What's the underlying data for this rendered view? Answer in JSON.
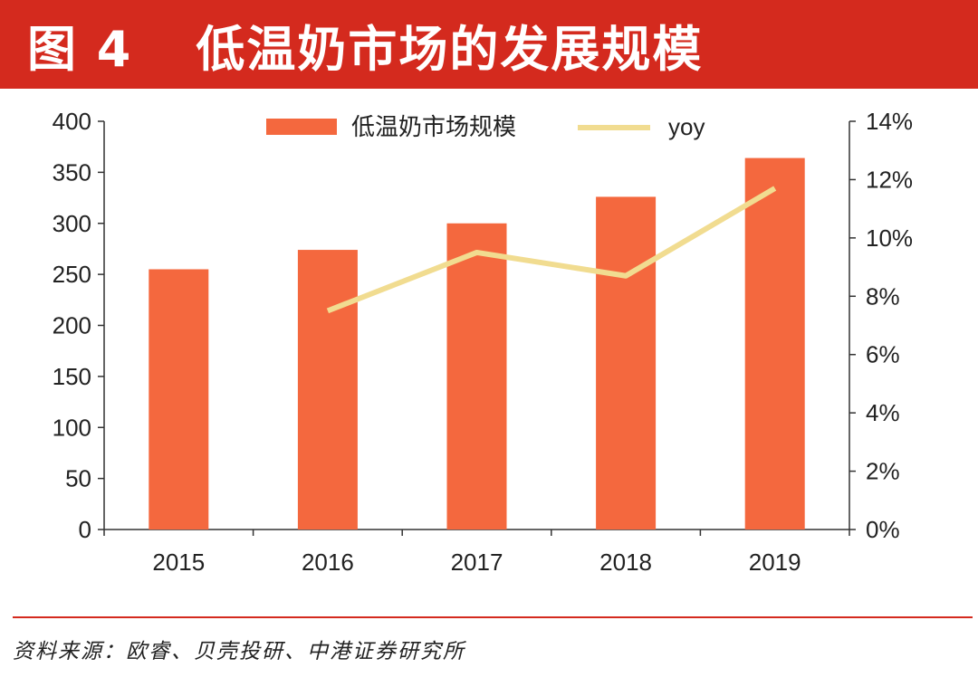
{
  "header": {
    "figure_number": "图 4",
    "title": "低温奶市场的发展规模"
  },
  "source_note": "资料来源：欧睿、贝壳投研、中港证券研究所",
  "colors": {
    "header_bg": "#d42a1e",
    "bar": "#f4683e",
    "line": "#f1dc90"
  },
  "chart_data": {
    "type": "bar",
    "categories": [
      "2015",
      "2016",
      "2017",
      "2018",
      "2019"
    ],
    "series": [
      {
        "name": "低温奶市场规模",
        "type": "bar",
        "axis": "left",
        "values": [
          255,
          274,
          300,
          326,
          364
        ]
      },
      {
        "name": "yoy",
        "type": "line",
        "axis": "right",
        "values": [
          null,
          7.5,
          9.5,
          8.7,
          11.7
        ]
      }
    ],
    "left_axis": {
      "ylim": [
        0,
        400
      ],
      "ticks": [
        "0",
        "50",
        "100",
        "150",
        "200",
        "250",
        "300",
        "350",
        "400"
      ]
    },
    "right_axis": {
      "ylim": [
        0,
        14
      ],
      "ticks": [
        "0%",
        "2%",
        "4%",
        "6%",
        "8%",
        "10%",
        "12%",
        "14%"
      ]
    },
    "legend_position": "top-center",
    "grid": false
  }
}
